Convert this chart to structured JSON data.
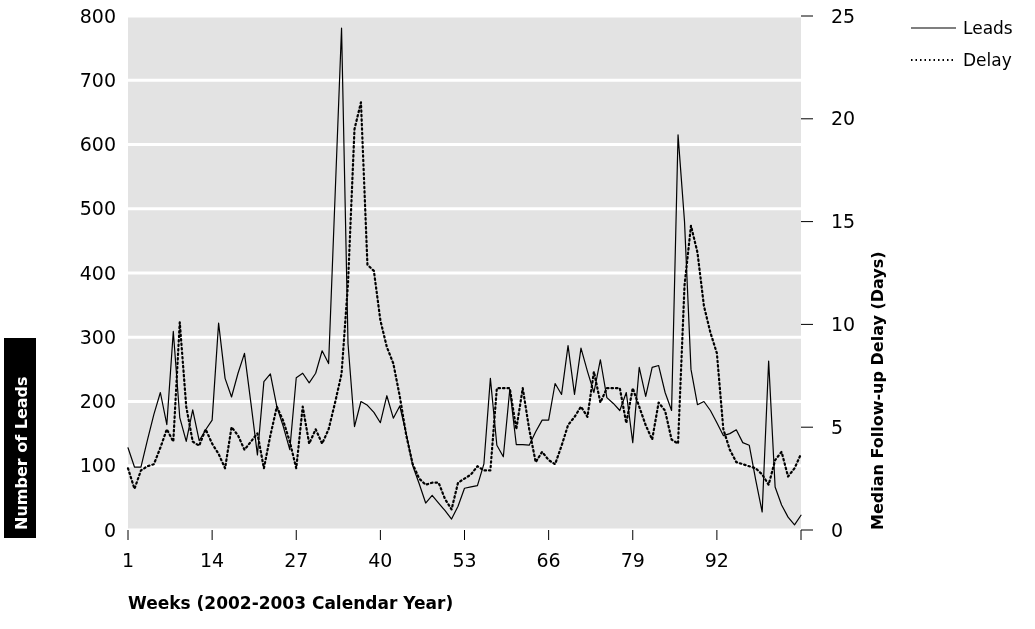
{
  "chart_data": {
    "type": "line",
    "xlabel": "Weeks (2002-2003 Calendar Year)",
    "ylabel": "Number of Leads",
    "y2label": "Median Follow-up Delay (Days)",
    "x": [
      1,
      2,
      3,
      4,
      5,
      6,
      7,
      8,
      9,
      10,
      11,
      12,
      13,
      14,
      15,
      16,
      17,
      18,
      19,
      20,
      21,
      22,
      23,
      24,
      25,
      26,
      27,
      28,
      29,
      30,
      31,
      32,
      33,
      34,
      35,
      36,
      37,
      38,
      39,
      40,
      41,
      42,
      43,
      44,
      45,
      46,
      47,
      48,
      49,
      50,
      51,
      52,
      53,
      54,
      55,
      56,
      57,
      58,
      59,
      60,
      61,
      62,
      63,
      64,
      65,
      66,
      67,
      68,
      69,
      70,
      71,
      72,
      73,
      74,
      75,
      76,
      77,
      78,
      79,
      80,
      81,
      82,
      83,
      84,
      85,
      86,
      87,
      88,
      89,
      90,
      91,
      92,
      93,
      94,
      95,
      96,
      97,
      98,
      99,
      100,
      101,
      102,
      103,
      104,
      105
    ],
    "series": [
      {
        "name": "Leads",
        "color": "#000000",
        "line_style": "solid",
        "values": [
          128,
          98,
          98,
          140,
          180,
          214,
          164,
          309,
          175,
          138,
          187,
          139,
          156,
          171,
          322,
          236,
          207,
          244,
          275,
          197,
          117,
          231,
          243,
          192,
          161,
          125,
          237,
          244,
          229,
          244,
          279,
          259,
          520,
          781,
          290,
          161,
          200,
          194,
          183,
          167,
          209,
          174,
          193,
          150,
          100,
          72,
          42,
          54,
          42,
          30,
          17,
          37,
          65,
          67,
          69,
          103,
          236,
          132,
          114,
          219,
          133,
          133,
          132,
          153,
          171,
          171,
          228,
          211,
          287,
          211,
          283,
          247,
          214,
          265,
          206,
          197,
          186,
          214,
          136,
          253,
          208,
          253,
          256,
          214,
          186,
          615,
          480,
          250,
          195,
          200,
          186,
          167,
          147,
          150,
          156,
          136,
          132,
          78,
          28,
          263,
          67,
          39,
          20,
          8,
          23
        ]
      },
      {
        "name": "Delay",
        "color": "#000000",
        "line_style": "dotted",
        "axis": "y2",
        "values": [
          3.0,
          2.0,
          2.9,
          3.1,
          3.2,
          4.0,
          4.9,
          4.3,
          10.1,
          6.0,
          4.3,
          4.1,
          4.9,
          4.2,
          3.7,
          3.0,
          5.0,
          4.6,
          3.9,
          4.3,
          4.7,
          3.0,
          4.6,
          6.0,
          5.3,
          4.3,
          3.0,
          6.0,
          4.2,
          4.9,
          4.2,
          4.9,
          6.2,
          7.6,
          12.0,
          19.5,
          20.8,
          12.9,
          12.6,
          10.2,
          8.9,
          8.1,
          6.5,
          4.6,
          3.2,
          2.5,
          2.2,
          2.3,
          2.3,
          1.5,
          1.0,
          2.3,
          2.5,
          2.7,
          3.1,
          2.9,
          2.9,
          6.9,
          6.9,
          6.9,
          4.9,
          6.9,
          4.9,
          3.3,
          3.8,
          3.4,
          3.2,
          4.1,
          5.1,
          5.5,
          6.0,
          5.5,
          7.7,
          6.2,
          6.9,
          6.9,
          6.9,
          5.2,
          6.9,
          6.0,
          5.1,
          4.4,
          6.2,
          5.8,
          4.4,
          4.2,
          11.9,
          14.8,
          13.5,
          10.9,
          9.6,
          8.6,
          4.9,
          3.9,
          3.3,
          3.2,
          3.1,
          3.0,
          2.7,
          2.2,
          3.4,
          3.8,
          2.6,
          3.0,
          3.7
        ]
      }
    ],
    "xlim": [
      1,
      105
    ],
    "xticks": [
      1,
      14,
      27,
      40,
      53,
      66,
      79,
      92,
      {
        "value": 105,
        "label": null
      }
    ],
    "ylim": [
      0,
      800
    ],
    "yticks": [
      0,
      100,
      200,
      300,
      400,
      500,
      600,
      700,
      800
    ],
    "y2lim": [
      0,
      25
    ],
    "y2ticks": [
      0,
      5,
      10,
      15,
      20,
      25
    ],
    "grid": "y",
    "legend": "top right",
    "marker": "none"
  }
}
